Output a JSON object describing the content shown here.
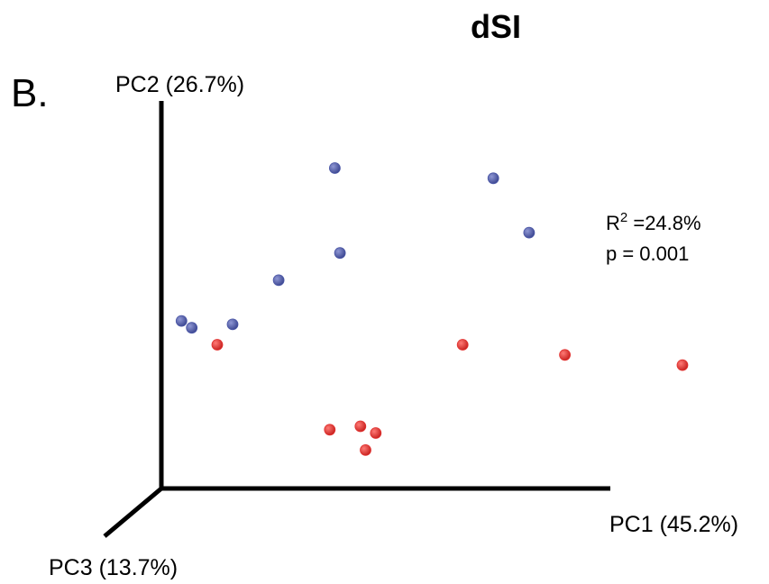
{
  "chart_data": {
    "type": "scatter",
    "title": "dSI",
    "panel_label": "B.",
    "axes": {
      "x_label": "PC1 (45.2%)",
      "y_label": "PC2 (26.7%)",
      "z_label": "PC3 (13.7%)"
    },
    "annotation": {
      "r2_prefix": "R",
      "r2_superscript": "2",
      "r2_value": " =24.8%",
      "p_text": "p = 0.001"
    },
    "series": [
      {
        "color": "#4a56a6",
        "points": [
          {
            "x": 0.32,
            "y": 0.89
          },
          {
            "x": 0.63,
            "y": 0.86
          },
          {
            "x": 0.7,
            "y": 0.7
          },
          {
            "x": 0.33,
            "y": 0.64
          },
          {
            "x": 0.21,
            "y": 0.56
          },
          {
            "x": 0.02,
            "y": 0.44
          },
          {
            "x": 0.04,
            "y": 0.42
          },
          {
            "x": 0.12,
            "y": 0.43
          }
        ]
      },
      {
        "color": "#e3312f",
        "points": [
          {
            "x": 0.09,
            "y": 0.37
          },
          {
            "x": 0.57,
            "y": 0.37
          },
          {
            "x": 0.77,
            "y": 0.34
          },
          {
            "x": 1.0,
            "y": 0.31
          },
          {
            "x": 0.31,
            "y": 0.12
          },
          {
            "x": 0.37,
            "y": 0.13
          },
          {
            "x": 0.4,
            "y": 0.11
          },
          {
            "x": 0.38,
            "y": 0.06
          }
        ]
      }
    ]
  }
}
